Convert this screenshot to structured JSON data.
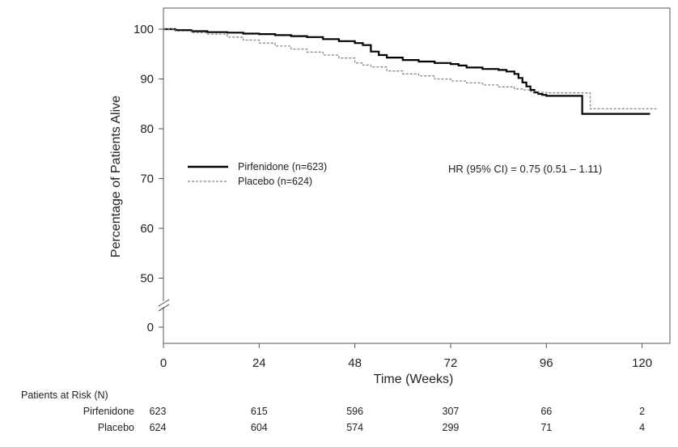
{
  "chart_data": {
    "type": "line",
    "subtype": "kaplan-meier",
    "xlabel": "Time (Weeks)",
    "ylabel": "Percentage of Patients Alive",
    "xlim": [
      0,
      125
    ],
    "ylim": [
      0,
      105
    ],
    "x_ticks": [
      0,
      24,
      48,
      72,
      96,
      120
    ],
    "y_ticks": [
      0,
      50,
      60,
      70,
      80,
      90,
      100
    ],
    "y_axis_break": true,
    "grid": false,
    "legend_position": "center-left",
    "annotation": "HR (95% CI) = 0.75 (0.51 – 1.11)",
    "series": [
      {
        "name": "Pirfenidone (n=623)",
        "line_style": "solid",
        "color": "#000000",
        "x": [
          0,
          3,
          7,
          11,
          16,
          20,
          24,
          28,
          32,
          36,
          40,
          44,
          48,
          50,
          52,
          54,
          56,
          60,
          64,
          68,
          72,
          74,
          76,
          80,
          84,
          86,
          88,
          89,
          90,
          91,
          92,
          93,
          94,
          95,
          96,
          100,
          104,
          105,
          110,
          115,
          120,
          122
        ],
        "y": [
          100,
          99.8,
          99.6,
          99.4,
          99.3,
          99.1,
          99.0,
          98.8,
          98.6,
          98.4,
          98.0,
          97.6,
          97.2,
          96.8,
          95.5,
          94.8,
          94.3,
          93.8,
          93.5,
          93.2,
          93.0,
          92.7,
          92.3,
          92.0,
          91.8,
          91.5,
          91.0,
          90.2,
          89.3,
          88.5,
          87.8,
          87.3,
          87.0,
          86.8,
          86.6,
          86.6,
          86.6,
          83.0,
          83.0,
          83.0,
          83.0,
          83.0
        ]
      },
      {
        "name": "Placebo (n=624)",
        "line_style": "dashed",
        "color": "#888888",
        "x": [
          0,
          3,
          7,
          11,
          16,
          20,
          24,
          28,
          32,
          36,
          40,
          44,
          48,
          50,
          52,
          56,
          60,
          64,
          68,
          72,
          76,
          80,
          84,
          88,
          90,
          92,
          94,
          96,
          100,
          104,
          107,
          110,
          115,
          120,
          124
        ],
        "y": [
          100,
          99.6,
          99.3,
          99.0,
          98.4,
          97.8,
          97.2,
          96.6,
          96.0,
          95.4,
          94.8,
          94.2,
          93.2,
          92.8,
          92.4,
          91.6,
          91.0,
          90.6,
          90.0,
          89.6,
          89.2,
          88.8,
          88.4,
          88.0,
          87.8,
          87.5,
          87.3,
          87.2,
          87.2,
          87.2,
          84.0,
          84.0,
          84.0,
          84.0,
          84.0
        ]
      }
    ],
    "risk_table": {
      "title": "Patients at Risk (N)",
      "times": [
        0,
        24,
        48,
        72,
        96,
        120
      ],
      "rows": [
        {
          "label": "Pirfenidone",
          "values": [
            "623",
            "615",
            "596",
            "307",
            "66",
            "2"
          ]
        },
        {
          "label": "Placebo",
          "values": [
            "624",
            "604",
            "574",
            "299",
            "71",
            "4"
          ]
        }
      ]
    }
  },
  "legend": {
    "pirfenidone": "Pirfenidone (n=623)",
    "placebo": "Placebo (n=624)"
  }
}
